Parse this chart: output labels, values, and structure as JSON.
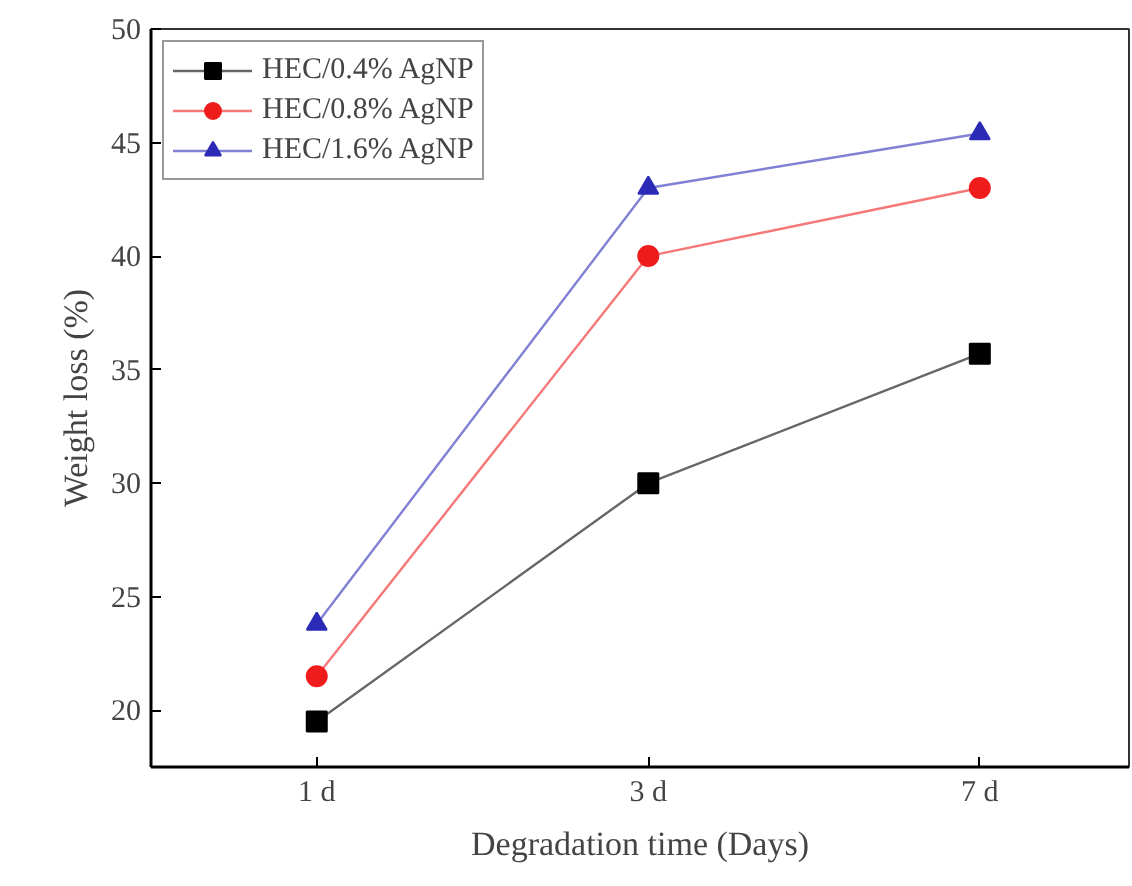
{
  "chart_data": {
    "type": "line",
    "xlabel": "Degradation time (Days)",
    "ylabel": "Weight loss (%)",
    "categories": [
      "1 d",
      "3 d",
      "7 d"
    ],
    "series": [
      {
        "name": "HEC/0.4% AgNP",
        "color": "#000000",
        "marker": "square",
        "values": [
          19.5,
          30,
          35.7
        ]
      },
      {
        "name": "HEC/0.8% AgNP",
        "color": "#ee1c1c",
        "marker": "circle",
        "values": [
          21.5,
          40,
          43
        ]
      },
      {
        "name": "HEC/1.6% AgNP",
        "color": "#2b2bb8",
        "marker": "triangle",
        "values": [
          23.8,
          43,
          45.4
        ]
      }
    ],
    "ylim": [
      17.5,
      50
    ],
    "yticks": [
      20,
      25,
      30,
      35,
      40,
      45,
      50
    ],
    "grid": false,
    "legend": "top left",
    "line_style": "solid"
  }
}
